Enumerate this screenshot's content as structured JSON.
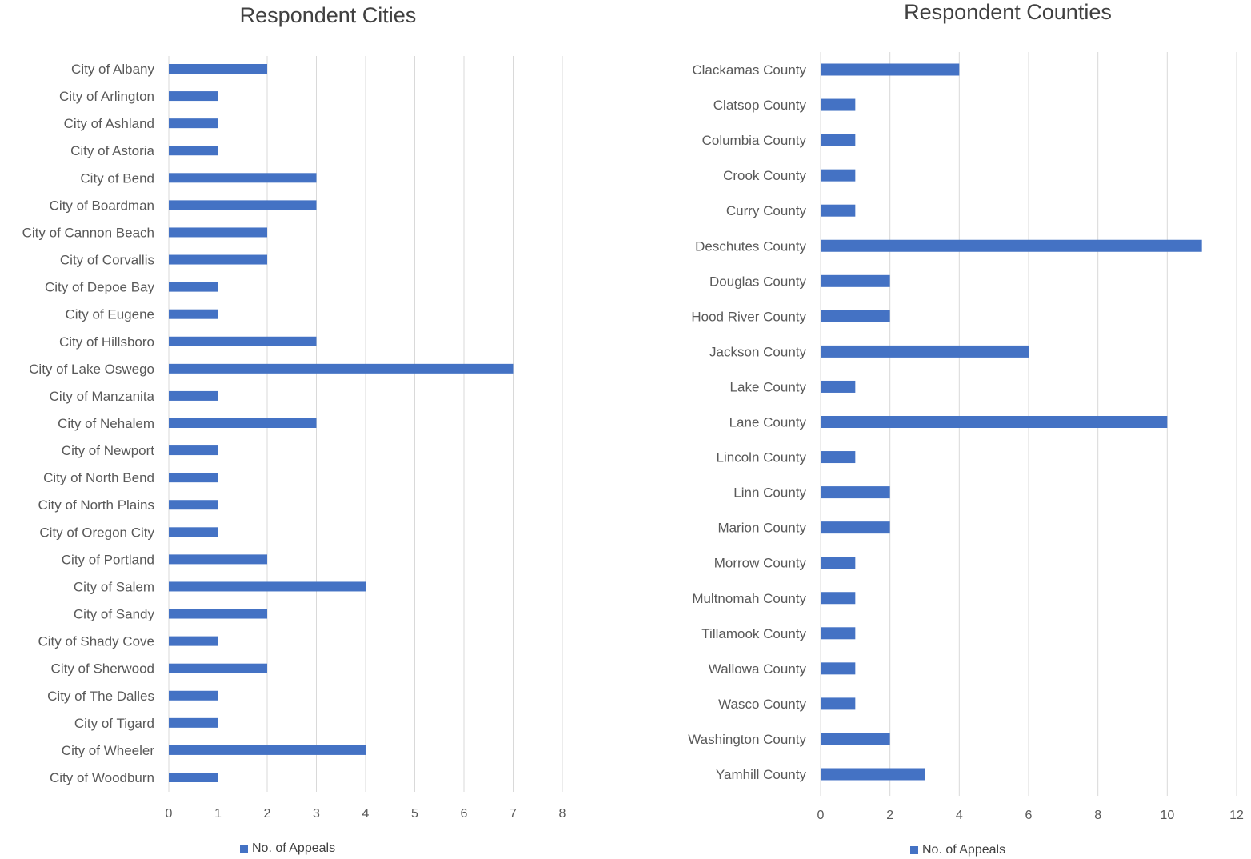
{
  "colors": {
    "bar": "#4472C4",
    "grid": "#d9d9d9",
    "text": "#595959"
  },
  "chart_data": [
    {
      "type": "bar",
      "orientation": "horizontal",
      "title": "Respondent Cities",
      "xlabel": "",
      "ylabel": "",
      "xlim": [
        0,
        8
      ],
      "x_ticks": [
        0,
        1,
        2,
        3,
        4,
        5,
        6,
        7,
        8
      ],
      "grid": true,
      "legend_position": "bottom",
      "categories": [
        "City of Albany",
        "City of Arlington",
        "City of Ashland",
        "City of Astoria",
        "City of Bend",
        "City of Boardman",
        "City of Cannon Beach",
        "City of Corvallis",
        "City of Depoe Bay",
        "City of Eugene",
        "City of Hillsboro",
        "City of Lake Oswego",
        "City of Manzanita",
        "City of Nehalem",
        "City of Newport",
        "City of North Bend",
        "City of North Plains",
        "City of Oregon City",
        "City of Portland",
        "City of Salem",
        "City of Sandy",
        "City of Shady Cove",
        "City of Sherwood",
        "City of The Dalles",
        "City of Tigard",
        "City of Wheeler",
        "City of Woodburn"
      ],
      "series": [
        {
          "name": "No. of Appeals",
          "values": [
            2,
            1,
            1,
            1,
            3,
            3,
            2,
            2,
            1,
            1,
            3,
            7,
            1,
            3,
            1,
            1,
            1,
            1,
            2,
            4,
            2,
            1,
            2,
            1,
            1,
            4,
            1
          ]
        }
      ]
    },
    {
      "type": "bar",
      "orientation": "horizontal",
      "title": "Respondent Counties",
      "xlabel": "",
      "ylabel": "",
      "xlim": [
        0,
        12
      ],
      "x_ticks": [
        0,
        2,
        4,
        6,
        8,
        10,
        12
      ],
      "grid": true,
      "legend_position": "bottom",
      "categories": [
        "Clackamas County",
        "Clatsop County",
        "Columbia County",
        "Crook County",
        "Curry County",
        "Deschutes County",
        "Douglas County",
        "Hood River County",
        "Jackson County",
        "Lake County",
        "Lane County",
        "Lincoln County",
        "Linn County",
        "Marion County",
        "Morrow County",
        "Multnomah County",
        "Tillamook County",
        "Wallowa County",
        "Wasco County",
        "Washington County",
        "Yamhill County"
      ],
      "series": [
        {
          "name": "No. of Appeals",
          "values": [
            4,
            1,
            1,
            1,
            1,
            11,
            2,
            2,
            6,
            1,
            10,
            1,
            2,
            2,
            1,
            1,
            1,
            1,
            1,
            2,
            3
          ]
        }
      ]
    }
  ]
}
